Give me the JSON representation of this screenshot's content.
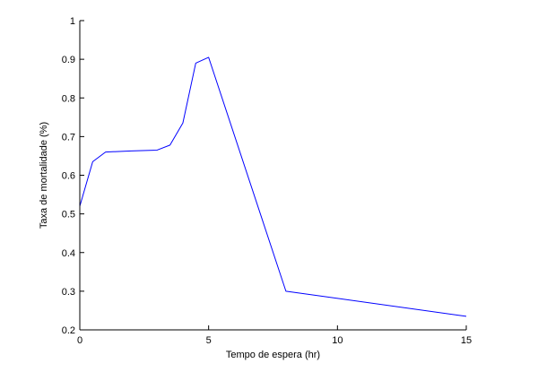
{
  "chart_data": {
    "type": "line",
    "xlabel": "Tempo de espera (hr)",
    "ylabel": "Taxa de mortalidade (%)",
    "xlim": [
      0,
      15
    ],
    "ylim": [
      0.2,
      1
    ],
    "xticks": [
      0,
      5,
      10,
      15
    ],
    "yticks": [
      0.2,
      0.3,
      0.4,
      0.5,
      0.6,
      0.7,
      0.8,
      0.9,
      1
    ],
    "x_tick_labels": [
      "0",
      "5",
      "10",
      "15"
    ],
    "y_tick_labels": [
      "0.2",
      "0.3",
      "0.4",
      "0.5",
      "0.6",
      "0.7",
      "0.8",
      "0.9",
      "1"
    ],
    "grid": false,
    "series": [
      {
        "color": "#0000ff",
        "x": [
          0,
          0.5,
          1,
          2,
          3,
          3.5,
          4,
          4.5,
          5,
          8,
          15
        ],
        "y": [
          0.52,
          0.635,
          0.66,
          0.663,
          0.665,
          0.678,
          0.735,
          0.89,
          0.905,
          0.3,
          0.235
        ]
      }
    ]
  }
}
